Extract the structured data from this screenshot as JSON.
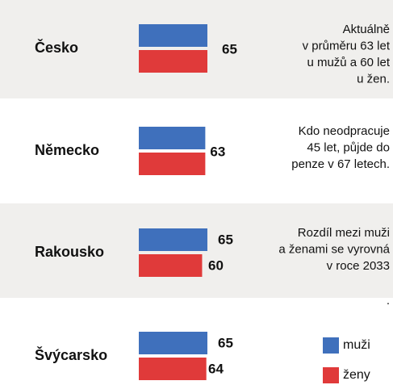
{
  "chart_data": {
    "type": "bar",
    "categories": [
      "Česko",
      "Německo",
      "Rakousko",
      "Švýcarsko"
    ],
    "series": [
      {
        "name": "muži",
        "color": "#3f70bc",
        "values": [
          65,
          63,
          65,
          65
        ]
      },
      {
        "name": "ženy",
        "color": "#e03a3a",
        "values": [
          65,
          63,
          60,
          64
        ]
      }
    ],
    "shared_label": [
      true,
      true,
      false,
      false
    ],
    "xlim": [
      0,
      65
    ],
    "notes": [
      [
        "Aktuálně",
        "v průměru 63 let",
        "u mužů a 60 let",
        "u žen."
      ],
      [
        "Kdo neodpracuje",
        "45 let, půjde do",
        "penze v 67 letech."
      ],
      [
        "Rozdíl mezi muži",
        "a ženami se vyrovná",
        "v roce 2033"
      ],
      [
        "."
      ]
    ]
  }
}
